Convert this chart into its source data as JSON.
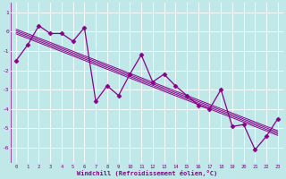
{
  "xlabel": "Windchill (Refroidissement éolien,°C)",
  "x_values": [
    0,
    1,
    2,
    3,
    4,
    5,
    6,
    7,
    8,
    9,
    10,
    11,
    12,
    13,
    14,
    15,
    16,
    17,
    18,
    19,
    20,
    21,
    22,
    23
  ],
  "y_values": [
    -1.5,
    -0.7,
    0.3,
    -0.1,
    -0.1,
    -0.5,
    0.2,
    -3.6,
    -2.8,
    -3.3,
    -2.2,
    -1.2,
    -2.6,
    -2.2,
    -2.8,
    -3.3,
    -3.8,
    -4.0,
    -3.0,
    -4.9,
    -4.8,
    -6.1,
    -5.4,
    -4.5
  ],
  "trend_x": [
    0,
    23
  ],
  "ylim": [
    -6.8,
    1.5
  ],
  "xlim": [
    -0.5,
    23.5
  ],
  "yticks": [
    1,
    0,
    -1,
    -2,
    -3,
    -4,
    -5,
    -6
  ],
  "xticks": [
    0,
    1,
    2,
    3,
    4,
    5,
    6,
    7,
    8,
    9,
    10,
    11,
    12,
    13,
    14,
    15,
    16,
    17,
    18,
    19,
    20,
    21,
    22,
    23
  ],
  "line_color": "#880088",
  "background_color": "#c0e8e8",
  "grid_color": "#ffffff",
  "tick_label_color": "#880088",
  "axis_label_color": "#880088",
  "marker": "D",
  "marker_size": 2.5,
  "line_width": 0.9
}
